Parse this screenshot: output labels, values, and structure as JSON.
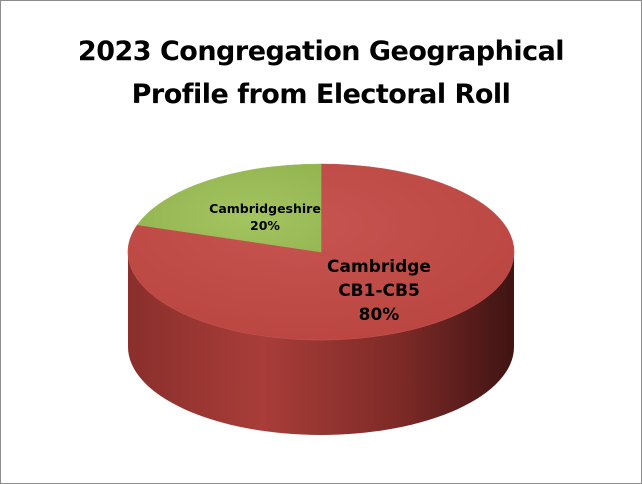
{
  "chart_data": {
    "type": "pie",
    "title_lines": [
      "2023 Congregation Geographical",
      "Profile from Electoral Roll"
    ],
    "slices": [
      {
        "label_lines": [
          "Cambridge",
          "CB1-CB5",
          "80%"
        ],
        "value": 80,
        "color": "#c0504d"
      },
      {
        "label_lines": [
          "Cambridgeshire",
          "20%"
        ],
        "value": 20,
        "color": "#9bbb59"
      }
    ],
    "three_d": true,
    "legend": "none"
  }
}
